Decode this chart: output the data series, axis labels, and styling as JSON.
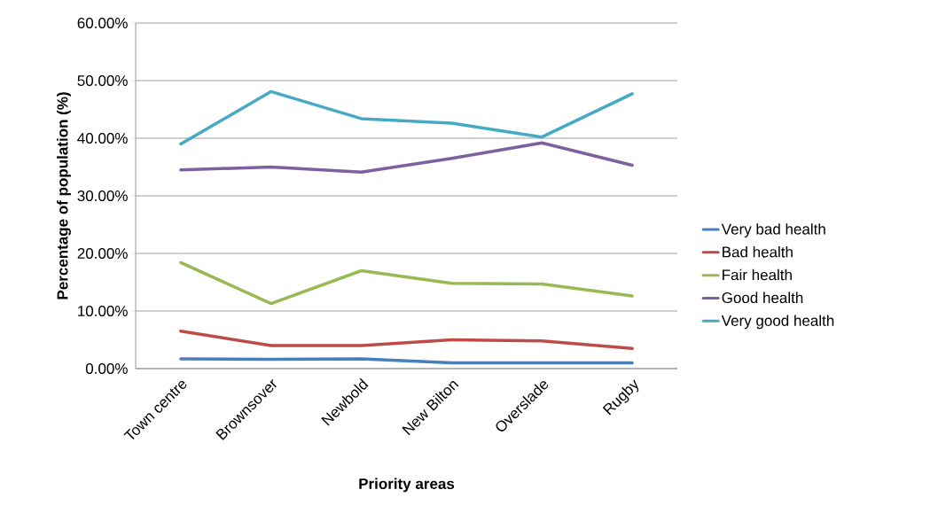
{
  "chart_data": {
    "type": "line",
    "xlabel": "Priority areas",
    "ylabel": "Percentage of population (%)",
    "categories": [
      "Town centre",
      "Brownsover",
      "Newbold",
      "New Bilton",
      "Overslade",
      "Rugby"
    ],
    "series": [
      {
        "name": "Very bad health",
        "color": "#4a7ebb",
        "values": [
          1.7,
          1.6,
          1.7,
          1.0,
          1.0,
          1.0
        ]
      },
      {
        "name": "Bad health",
        "color": "#be4b48",
        "values": [
          6.5,
          4.0,
          4.0,
          5.0,
          4.8,
          3.5
        ]
      },
      {
        "name": "Fair health",
        "color": "#98b954",
        "values": [
          18.4,
          11.3,
          17.0,
          14.8,
          14.7,
          12.6
        ]
      },
      {
        "name": "Good health",
        "color": "#7d60a0",
        "values": [
          34.5,
          35.0,
          34.1,
          36.5,
          39.2,
          35.3
        ]
      },
      {
        "name": "Very good health",
        "color": "#46aac5",
        "values": [
          39.0,
          48.1,
          43.4,
          42.6,
          40.2,
          47.7
        ]
      }
    ],
    "ylim": [
      0,
      60
    ],
    "yticks": [
      {
        "value": 0,
        "label": "0.00%"
      },
      {
        "value": 10,
        "label": "10.00%"
      },
      {
        "value": 20,
        "label": "20.00%"
      },
      {
        "value": 30,
        "label": "30.00%"
      },
      {
        "value": 40,
        "label": "40.00%"
      },
      {
        "value": 50,
        "label": "50.00%"
      },
      {
        "value": 60,
        "label": "60.00%"
      }
    ],
    "grid": "y",
    "legend": "right",
    "marker": "none",
    "line_style": "solid"
  }
}
